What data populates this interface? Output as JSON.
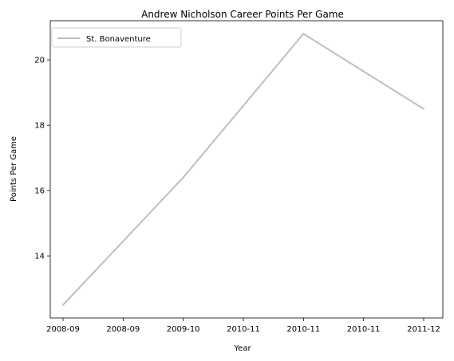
{
  "chart_data": {
    "type": "line",
    "title": "Andrew Nicholson  Career Points Per Game",
    "xlabel": "Year",
    "ylabel": "Points Per Game",
    "x_tick_labels": [
      "2008-09",
      "2008-09",
      "2009-10",
      "2010-11",
      "2010-11",
      "2010-11",
      "2011-12"
    ],
    "yticks": [
      14,
      16,
      18,
      20
    ],
    "ylim": [
      12.1,
      21.2
    ],
    "legend_position": "top-left",
    "grid": false,
    "series": [
      {
        "name": "St. Bonaventure",
        "color": "#bfbfbf",
        "x": [
          "2008-09",
          "2009-10",
          "2010-11",
          "2011-12"
        ],
        "values": [
          12.5,
          16.4,
          20.8,
          18.5
        ]
      }
    ]
  }
}
